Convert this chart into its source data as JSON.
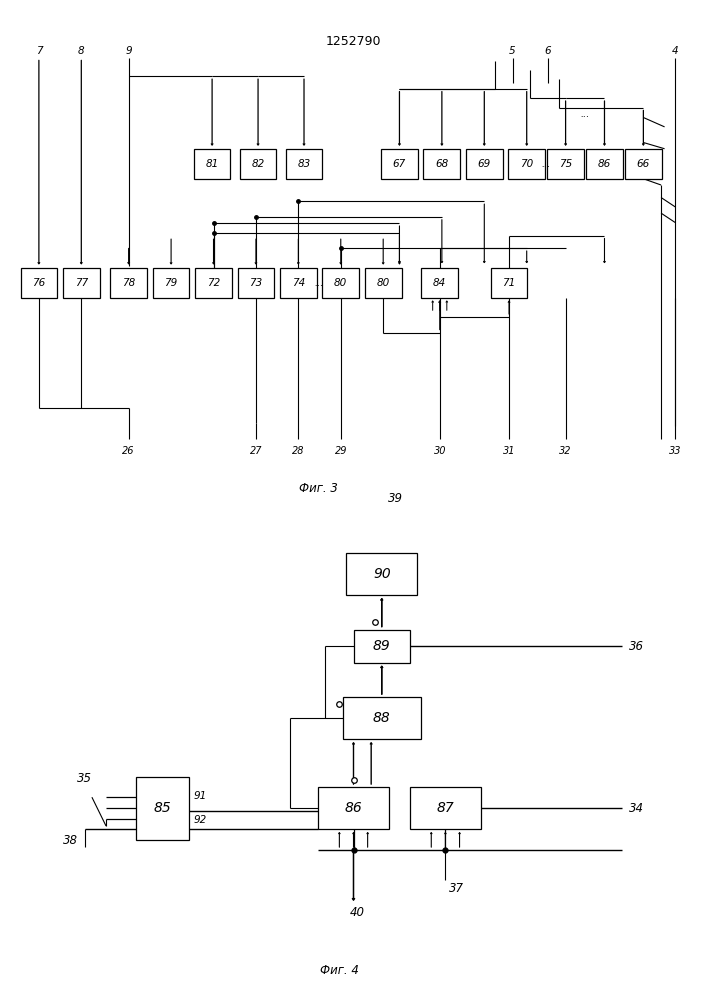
{
  "title": "1252790",
  "fig3_label": "Фиг. 3",
  "fig4_label": "Фиг. 4",
  "bg_color": "#ffffff",
  "line_color": "#000000",
  "box_fill": "#f5f5f5",
  "box_edge": "#000000"
}
